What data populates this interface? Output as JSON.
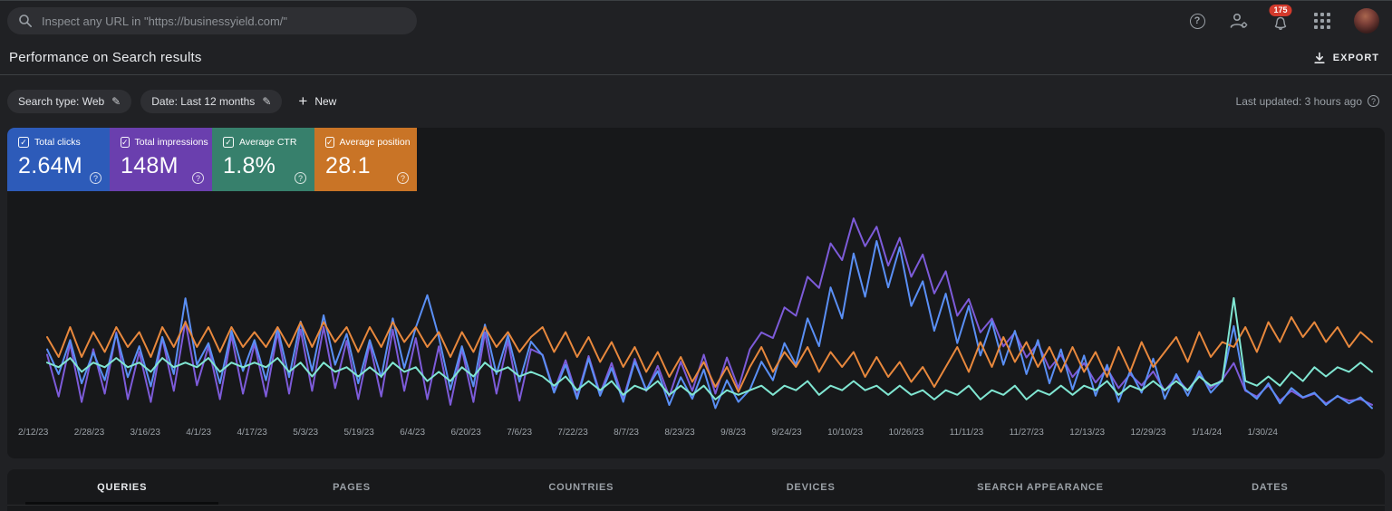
{
  "topbar": {
    "search_placeholder": "Inspect any URL in \"https://businessyield.com/\"",
    "notification_count": "175"
  },
  "header": {
    "title": "Performance on Search results",
    "export_label": "EXPORT"
  },
  "filters": {
    "chips": [
      {
        "label": "Search type: Web"
      },
      {
        "label": "Date: Last 12 months"
      }
    ],
    "new_label": "New",
    "last_updated": "Last updated: 3 hours ago"
  },
  "metrics": {
    "cards": [
      {
        "label": "Total clicks",
        "value": "2.64M",
        "color": "#2d5bb9"
      },
      {
        "label": "Total impressions",
        "value": "148M",
        "color": "#6a3fae"
      },
      {
        "label": "Average CTR",
        "value": "1.8%",
        "color": "#37806c"
      },
      {
        "label": "Average position",
        "value": "28.1",
        "color": "#c97426"
      }
    ]
  },
  "chart_data": {
    "type": "line",
    "title": "Performance on Search results",
    "x_labels": [
      "2/12/23",
      "2/28/23",
      "3/16/23",
      "4/1/23",
      "4/17/23",
      "5/3/23",
      "5/19/23",
      "6/4/23",
      "6/20/23",
      "7/6/23",
      "7/22/23",
      "8/7/23",
      "8/23/23",
      "9/8/23",
      "9/24/23",
      "10/10/23",
      "10/26/23",
      "11/11/23",
      "11/27/23",
      "12/13/23",
      "12/29/23",
      "1/14/24",
      "1/30/24"
    ],
    "grid": false,
    "legend_position": "top-cards",
    "series": [
      {
        "name": "Total impressions",
        "unit": "K/day",
        "color": "#7d5bd9",
        "inverted": false,
        "band": {
          "vmin": 350,
          "vmax": 1050,
          "yTop": 30,
          "yBottom": 245
        },
        "values": [
          560,
          410,
          600,
          390,
          580,
          420,
          640,
          400,
          570,
          390,
          620,
          430,
          680,
          450,
          590,
          400,
          630,
          420,
          600,
          410,
          640,
          420,
          650,
          430,
          660,
          440,
          610,
          400,
          600,
          410,
          650,
          430,
          620,
          400,
          590,
          380,
          580,
          390,
          640,
          420,
          610,
          395,
          580,
          560,
          430,
          540,
          410,
          555,
          420,
          530,
          400,
          545,
          430,
          520,
          410,
          535,
          430,
          560,
          420,
          550,
          440,
          580,
          640,
          620,
          730,
          700,
          840,
          800,
          960,
          900,
          1050,
          950,
          1020,
          880,
          980,
          840,
          920,
          780,
          860,
          700,
          760,
          640,
          690,
          590,
          640,
          550,
          600,
          510,
          560,
          480,
          530,
          460,
          510,
          440,
          490,
          450,
          500,
          430,
          480,
          430,
          490,
          440,
          470,
          530,
          430,
          410,
          450,
          395,
          430,
          405,
          420,
          385,
          410,
          395,
          400,
          380
        ]
      },
      {
        "name": "Total clicks",
        "unit": "K/day",
        "color": "#5a8ff5",
        "inverted": false,
        "band": {
          "vmin": 4.7,
          "vmax": 16,
          "yTop": 55,
          "yBottom": 248
        },
        "values": [
          9.0,
          7.4,
          9.6,
          6.8,
          8.8,
          7.0,
          10.0,
          7.2,
          9.2,
          6.6,
          9.8,
          7.4,
          12.3,
          8.0,
          9.4,
          6.8,
          10.2,
          7.6,
          9.6,
          7.0,
          10.4,
          7.2,
          10.8,
          7.6,
          11.2,
          8.0,
          10.0,
          6.8,
          9.6,
          7.2,
          11.0,
          7.8,
          10.4,
          12.5,
          9.8,
          6.4,
          9.2,
          6.6,
          10.6,
          7.4,
          9.9,
          6.9,
          9.5,
          8.6,
          6.2,
          8.0,
          5.8,
          8.4,
          6.0,
          7.8,
          5.6,
          8.2,
          6.4,
          7.6,
          5.4,
          7.2,
          5.8,
          7.7,
          5.2,
          7.0,
          5.6,
          6.4,
          8.2,
          7.0,
          9.4,
          8.0,
          11.0,
          9.2,
          13.0,
          11.0,
          15.2,
          12.4,
          16.0,
          13.0,
          15.6,
          11.8,
          13.4,
          10.2,
          12.6,
          9.4,
          11.8,
          8.6,
          10.8,
          8.0,
          10.2,
          7.4,
          9.6,
          6.8,
          9.0,
          6.4,
          8.6,
          6.0,
          8.0,
          5.6,
          7.6,
          6.2,
          8.4,
          5.8,
          7.4,
          6.0,
          7.6,
          6.2,
          7.0,
          10.5,
          6.4,
          5.8,
          6.8,
          5.5,
          6.5,
          5.9,
          6.2,
          5.4,
          6.0,
          5.5,
          5.9,
          5.2
        ]
      },
      {
        "name": "Average position",
        "unit": "position",
        "color": "#e8883d",
        "inverted": true,
        "band": {
          "vmin": 24,
          "vmax": 34,
          "yTop": 128,
          "yBottom": 238
        },
        "values": [
          27,
          29,
          26,
          29,
          26.5,
          28.5,
          26,
          28,
          26.5,
          29,
          26,
          28,
          25.5,
          28,
          26,
          28.5,
          26,
          28,
          26.5,
          28,
          26,
          28,
          25.5,
          28,
          25.5,
          27.5,
          26,
          28.5,
          26,
          28,
          25.5,
          27.5,
          26,
          28,
          26.5,
          29,
          26.5,
          28.5,
          26,
          28,
          26.5,
          28.5,
          27,
          26,
          28.5,
          26.5,
          29,
          27,
          29.5,
          27.5,
          30,
          28,
          30.5,
          28.5,
          31,
          29,
          31.5,
          29.5,
          32,
          30,
          32.5,
          30,
          28,
          30.5,
          28.5,
          30,
          28,
          30.5,
          28.5,
          30,
          28.5,
          31,
          29,
          31,
          29.5,
          31.5,
          30,
          32,
          30,
          28,
          30.5,
          27.5,
          30,
          27,
          29.5,
          27.5,
          30,
          28,
          30.5,
          28,
          30.5,
          28.5,
          31,
          28,
          30.5,
          27.5,
          30,
          28.5,
          27,
          29.5,
          26.5,
          29,
          27.5,
          28,
          26,
          28.5,
          25.5,
          27.5,
          25,
          27,
          25.5,
          27.5,
          26,
          28,
          26.5,
          27.5
        ]
      },
      {
        "name": "Average CTR",
        "unit": "%",
        "color": "#80e6d2",
        "inverted": false,
        "band": {
          "vmin": 1.4,
          "vmax": 3.7,
          "yTop": 118,
          "yBottom": 235
        },
        "values": [
          2.3,
          2.2,
          2.4,
          2.1,
          2.3,
          2.2,
          2.4,
          2.2,
          2.3,
          2.1,
          2.4,
          2.2,
          2.3,
          2.2,
          2.4,
          2.1,
          2.3,
          2.2,
          2.3,
          2.2,
          2.4,
          2.1,
          2.3,
          2.0,
          2.3,
          2.1,
          2.2,
          2.0,
          2.2,
          2.0,
          2.3,
          2.1,
          2.2,
          1.9,
          2.1,
          1.9,
          2.2,
          2.0,
          2.3,
          2.1,
          2.2,
          2.0,
          2.1,
          2.0,
          1.8,
          2.0,
          1.7,
          1.9,
          1.7,
          1.9,
          1.6,
          1.8,
          1.7,
          1.9,
          1.6,
          1.8,
          1.6,
          1.8,
          1.5,
          1.7,
          1.6,
          1.7,
          1.8,
          1.6,
          1.8,
          1.7,
          1.9,
          1.6,
          1.8,
          1.7,
          1.9,
          1.7,
          1.8,
          1.6,
          1.8,
          1.6,
          1.7,
          1.5,
          1.7,
          1.6,
          1.8,
          1.5,
          1.7,
          1.6,
          1.8,
          1.5,
          1.7,
          1.6,
          1.8,
          1.6,
          1.8,
          1.7,
          1.9,
          1.6,
          1.8,
          1.7,
          1.9,
          1.7,
          1.9,
          1.7,
          2.0,
          1.8,
          1.9,
          3.7,
          1.9,
          1.8,
          2.0,
          1.8,
          2.1,
          1.9,
          2.2,
          2.0,
          2.2,
          2.1,
          2.3,
          2.1
        ]
      }
    ]
  },
  "tabs": {
    "items": [
      {
        "label": "QUERIES",
        "active": true
      },
      {
        "label": "PAGES",
        "active": false
      },
      {
        "label": "COUNTRIES",
        "active": false
      },
      {
        "label": "DEVICES",
        "active": false
      },
      {
        "label": "SEARCH APPEARANCE",
        "active": false
      },
      {
        "label": "DATES",
        "active": false
      }
    ]
  }
}
